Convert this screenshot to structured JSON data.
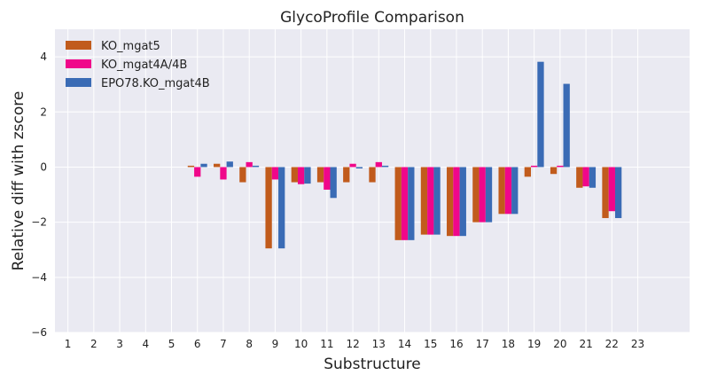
{
  "chart_data": {
    "type": "bar",
    "title": "GlycoProfile Comparison",
    "xlabel": "Substructure",
    "ylabel": "Relative diff with zscore",
    "ylim": [
      -6,
      5
    ],
    "yticks": [
      -6,
      -4,
      -2,
      0,
      2,
      4
    ],
    "grid": true,
    "legend_position": "top-left",
    "categories": [
      "1",
      "2",
      "3",
      "4",
      "5",
      "6",
      "7",
      "8",
      "9",
      "10",
      "11",
      "12",
      "13",
      "14",
      "15",
      "16",
      "17",
      "18",
      "19",
      "20",
      "21",
      "22",
      "23"
    ],
    "series": [
      {
        "name": "KO_mgat5",
        "color": "#c15b1c",
        "values": [
          0,
          0,
          0,
          0,
          0,
          0.05,
          0.12,
          -0.55,
          -2.95,
          -0.55,
          -0.55,
          -0.55,
          -0.55,
          -2.65,
          -2.45,
          -2.5,
          -2.0,
          -1.7,
          -0.35,
          -0.25,
          -0.75,
          -1.85,
          0
        ]
      },
      {
        "name": "KO_mgat4A/4B",
        "color": "#f0078a",
        "values": [
          0,
          0,
          0,
          0,
          0,
          -0.35,
          -0.45,
          0.18,
          -0.45,
          -0.62,
          -0.82,
          0.12,
          0.18,
          -2.65,
          -2.45,
          -2.5,
          -2.0,
          -1.7,
          0.05,
          0.05,
          -0.7,
          -1.6,
          0
        ]
      },
      {
        "name": "EPO78.KO_mgat4B",
        "color": "#3a6bb5",
        "values": [
          0,
          0,
          0,
          0,
          0,
          0.12,
          0.2,
          0.05,
          -2.95,
          -0.6,
          -1.12,
          -0.05,
          0.05,
          -2.65,
          -2.45,
          -2.5,
          -2.0,
          -1.7,
          3.82,
          3.02,
          -0.75,
          -1.85,
          0
        ]
      }
    ]
  }
}
